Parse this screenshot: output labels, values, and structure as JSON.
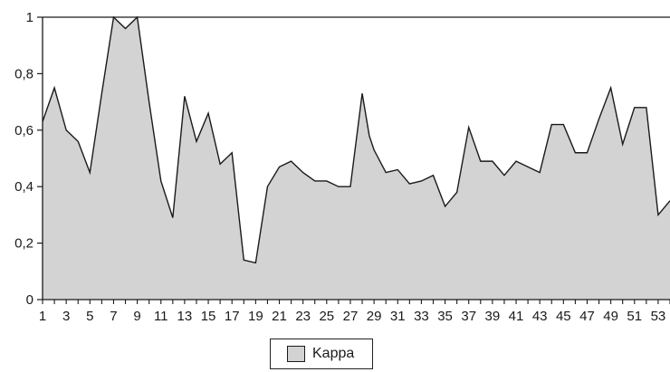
{
  "chart_data": {
    "type": "area",
    "x": [
      1,
      2,
      3,
      4,
      5,
      6,
      7,
      8,
      9,
      10,
      11,
      12,
      13,
      14,
      15,
      16,
      17,
      18,
      19,
      20,
      21,
      22,
      23,
      24,
      25,
      26,
      27,
      28,
      28.6,
      29,
      30,
      31,
      32,
      33,
      34,
      35,
      36,
      37,
      38,
      39,
      40,
      41,
      42,
      43,
      44,
      45,
      46,
      47,
      48,
      49,
      50,
      51,
      52,
      53,
      54
    ],
    "series": [
      {
        "name": "Kappa",
        "values": [
          0.63,
          0.75,
          0.6,
          0.56,
          0.45,
          0.73,
          1.0,
          0.96,
          1.0,
          0.7,
          0.42,
          0.29,
          0.72,
          0.56,
          0.66,
          0.48,
          0.52,
          0.14,
          0.13,
          0.4,
          0.47,
          0.49,
          0.45,
          0.42,
          0.42,
          0.4,
          0.4,
          0.73,
          0.58,
          0.53,
          0.45,
          0.46,
          0.41,
          0.42,
          0.44,
          0.33,
          0.38,
          0.61,
          0.49,
          0.49,
          0.44,
          0.49,
          0.47,
          0.45,
          0.62,
          0.62,
          0.52,
          0.52,
          0.64,
          0.75,
          0.55,
          0.68,
          0.68,
          0.3,
          0.35
        ]
      }
    ],
    "ylim": [
      0,
      1
    ],
    "yticks": [
      0,
      0.2,
      0.4,
      0.6,
      0.8,
      1
    ],
    "ytick_labels": [
      "0",
      "0,2",
      "0,4",
      "0,6",
      "0,8",
      "1"
    ],
    "xticks": [
      1,
      3,
      5,
      7,
      9,
      11,
      13,
      15,
      17,
      19,
      21,
      23,
      25,
      27,
      29,
      31,
      33,
      35,
      37,
      39,
      41,
      43,
      45,
      47,
      49,
      51,
      53
    ],
    "xtick_labels": [
      "1",
      "3",
      "5",
      "7",
      "9",
      "11",
      "13",
      "15",
      "17",
      "19",
      "21",
      "23",
      "25",
      "27",
      "29",
      "31",
      "33",
      "35",
      "37",
      "39",
      "41",
      "43",
      "45",
      "47",
      "49",
      "51",
      "53"
    ],
    "xlim": [
      1,
      54
    ],
    "grid": false,
    "top_line": true,
    "legend": "bottom",
    "fill_color": "#d3d3d3",
    "line_color": "#1a1a1a"
  },
  "legend": {
    "label": "Kappa"
  }
}
